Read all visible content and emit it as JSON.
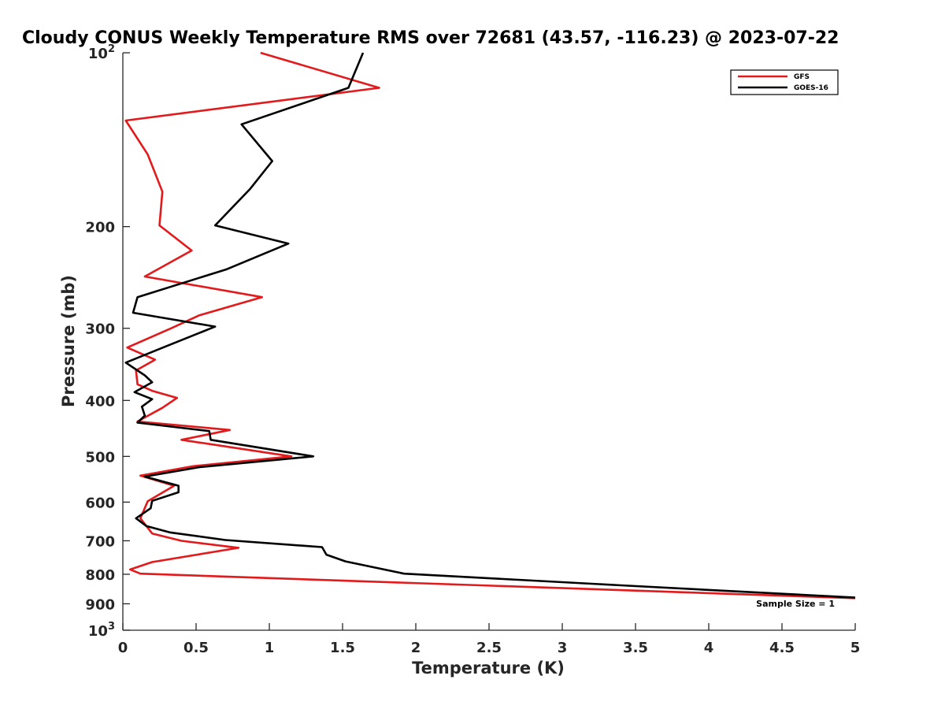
{
  "chart_data": {
    "type": "line",
    "title": "Cloudy CONUS Weekly Temperature RMS over 72681 (43.57, -116.23) @ 2023-07-22",
    "xlabel": "Temperature (K)",
    "ylabel": "Pressure (mb)",
    "xlim": [
      0,
      5
    ],
    "ylim": [
      100,
      1000
    ],
    "y_scale": "log",
    "y_reversed": true,
    "x_ticks": [
      0,
      0.5,
      1,
      1.5,
      2,
      2.5,
      3,
      3.5,
      4,
      4.5,
      5
    ],
    "x_tick_labels": [
      "0",
      "0.5",
      "1",
      "1.5",
      "2",
      "2.5",
      "3",
      "3.5",
      "4",
      "4.5",
      "5"
    ],
    "y_ticks": [
      100,
      200,
      300,
      400,
      500,
      600,
      700,
      800,
      900,
      1000
    ],
    "y_tick_labels": [
      {
        "base": "10",
        "exp": "2"
      },
      {
        "base": "200",
        "exp": ""
      },
      {
        "base": "300",
        "exp": ""
      },
      {
        "base": "400",
        "exp": ""
      },
      {
        "base": "500",
        "exp": ""
      },
      {
        "base": "600",
        "exp": ""
      },
      {
        "base": "700",
        "exp": ""
      },
      {
        "base": "800",
        "exp": ""
      },
      {
        "base": "900",
        "exp": ""
      },
      {
        "base": "10",
        "exp": "3"
      }
    ],
    "grid": false,
    "legend_position": "top-right",
    "annotation": "Sample Size = 1",
    "series": [
      {
        "name": "GFS",
        "color": "#e31a1c",
        "points": [
          [
            0.94,
            100
          ],
          [
            1.75,
            115
          ],
          [
            0.02,
            131
          ],
          [
            0.17,
            150
          ],
          [
            0.27,
            174
          ],
          [
            0.25,
            199
          ],
          [
            0.47,
            220
          ],
          [
            0.15,
            244
          ],
          [
            0.95,
            265
          ],
          [
            0.52,
            285
          ],
          [
            0.33,
            300
          ],
          [
            0.03,
            324
          ],
          [
            0.22,
            340
          ],
          [
            0.09,
            355
          ],
          [
            0.1,
            375
          ],
          [
            0.2,
            385
          ],
          [
            0.37,
            396
          ],
          [
            0.27,
            412
          ],
          [
            0.1,
            435
          ],
          [
            0.73,
            450
          ],
          [
            0.4,
            468
          ],
          [
            1.15,
            500
          ],
          [
            0.48,
            520
          ],
          [
            0.12,
            540
          ],
          [
            0.35,
            562
          ],
          [
            0.17,
            598
          ],
          [
            0.12,
            640
          ],
          [
            0.2,
            680
          ],
          [
            0.4,
            700
          ],
          [
            0.79,
            720
          ],
          [
            0.2,
            762
          ],
          [
            0.05,
            785
          ],
          [
            0.12,
            798
          ],
          [
            5.0,
            880
          ]
        ]
      },
      {
        "name": "GOES-16",
        "color": "#000000",
        "points": [
          [
            1.64,
            100
          ],
          [
            1.54,
            115
          ],
          [
            0.81,
            133
          ],
          [
            1.02,
            154
          ],
          [
            0.87,
            172
          ],
          [
            0.63,
            199
          ],
          [
            1.13,
            214
          ],
          [
            0.71,
            237
          ],
          [
            0.1,
            265
          ],
          [
            0.07,
            282
          ],
          [
            0.63,
            298
          ],
          [
            0.26,
            325
          ],
          [
            0.02,
            344
          ],
          [
            0.15,
            362
          ],
          [
            0.2,
            372
          ],
          [
            0.08,
            387
          ],
          [
            0.2,
            398
          ],
          [
            0.13,
            410
          ],
          [
            0.15,
            425
          ],
          [
            0.1,
            437
          ],
          [
            0.59,
            452
          ],
          [
            0.6,
            468
          ],
          [
            1.3,
            500
          ],
          [
            0.52,
            522
          ],
          [
            0.15,
            542
          ],
          [
            0.38,
            562
          ],
          [
            0.38,
            577
          ],
          [
            0.2,
            597
          ],
          [
            0.19,
            615
          ],
          [
            0.09,
            640
          ],
          [
            0.16,
            660
          ],
          [
            0.32,
            677
          ],
          [
            0.7,
            698
          ],
          [
            1.36,
            718
          ],
          [
            1.39,
            740
          ],
          [
            1.52,
            760
          ],
          [
            1.92,
            798
          ],
          [
            3.4,
            836
          ],
          [
            5.0,
            878
          ]
        ]
      }
    ]
  }
}
